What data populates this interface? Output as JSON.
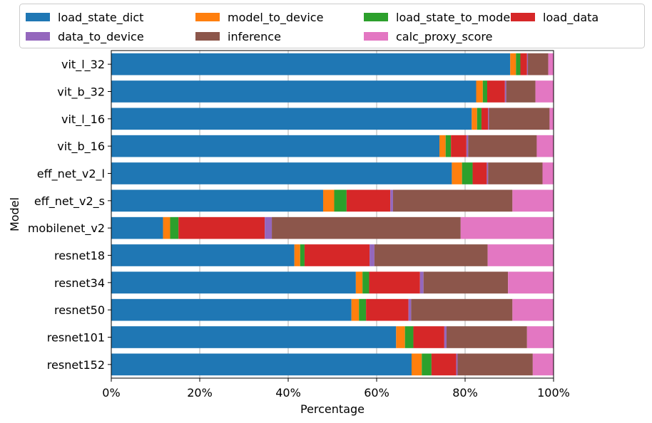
{
  "chart_data": {
    "type": "bar",
    "orientation": "horizontal",
    "stacked": true,
    "xlabel": "Percentage",
    "ylabel": "Model",
    "xlim": [
      0,
      100
    ],
    "x_ticks": [
      "0%",
      "20%",
      "40%",
      "60%",
      "80%",
      "100%"
    ],
    "grid": "vertical",
    "legend_position": "top",
    "categories": [
      "vit_l_32",
      "vit_b_32",
      "vit_l_16",
      "vit_b_16",
      "eff_net_v2_l",
      "eff_net_v2_s",
      "mobilenet_v2",
      "resnet18",
      "resnet34",
      "resnet50",
      "resnet101",
      "resnet152"
    ],
    "series": [
      {
        "name": "load_state_dict",
        "color": "#1f77b4",
        "values": [
          90.2,
          82.5,
          81.5,
          74.2,
          77.0,
          47.9,
          11.7,
          41.4,
          55.3,
          54.3,
          64.4,
          67.9
        ]
      },
      {
        "name": "model_to_device",
        "color": "#ff7f0e",
        "values": [
          1.3,
          1.5,
          1.2,
          1.4,
          2.3,
          2.5,
          1.6,
          1.3,
          1.5,
          1.7,
          2.0,
          2.3
        ]
      },
      {
        "name": "load_state_to_model",
        "color": "#2ca02c",
        "values": [
          1.0,
          1.0,
          1.0,
          1.2,
          2.4,
          2.8,
          1.9,
          1.0,
          1.5,
          1.6,
          1.9,
          2.2
        ]
      },
      {
        "name": "load_data",
        "color": "#d62728",
        "values": [
          1.5,
          4.0,
          1.5,
          3.5,
          3.2,
          9.9,
          19.5,
          14.7,
          11.5,
          9.6,
          7.0,
          5.6
        ]
      },
      {
        "name": "data_to_device",
        "color": "#9467bd",
        "values": [
          0.2,
          0.3,
          0.2,
          0.4,
          0.3,
          0.6,
          1.6,
          1.1,
          0.8,
          0.6,
          0.5,
          0.3
        ]
      },
      {
        "name": "inference",
        "color": "#8c564b",
        "values": [
          4.6,
          6.6,
          13.7,
          15.5,
          12.3,
          27.0,
          42.7,
          25.6,
          19.1,
          22.9,
          18.2,
          17.0
        ]
      },
      {
        "name": "calc_proxy_score",
        "color": "#e377c2",
        "values": [
          1.2,
          4.1,
          0.9,
          3.8,
          2.5,
          9.3,
          21.0,
          14.9,
          10.3,
          9.3,
          6.0,
          4.7
        ]
      }
    ]
  }
}
